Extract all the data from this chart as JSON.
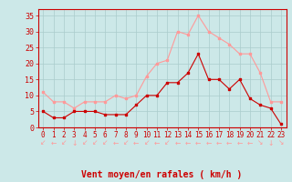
{
  "hours": [
    0,
    1,
    2,
    3,
    4,
    5,
    6,
    7,
    8,
    9,
    10,
    11,
    12,
    13,
    14,
    15,
    16,
    17,
    18,
    19,
    20,
    21,
    22,
    23
  ],
  "wind_avg": [
    5,
    3,
    3,
    5,
    5,
    5,
    4,
    4,
    4,
    7,
    10,
    10,
    14,
    14,
    17,
    23,
    15,
    15,
    12,
    15,
    9,
    7,
    6,
    1
  ],
  "wind_gust": [
    11,
    8,
    8,
    6,
    8,
    8,
    8,
    10,
    9,
    10,
    16,
    20,
    21,
    30,
    29,
    35,
    30,
    28,
    26,
    23,
    23,
    17,
    8,
    8
  ],
  "avg_color": "#cc0000",
  "gust_color": "#ff9999",
  "bg_color": "#cce8e8",
  "grid_color": "#aacccc",
  "axis_color": "#cc0000",
  "xlabel": "Vent moyen/en rafales ( km/h )",
  "ylim": [
    0,
    37
  ],
  "yticks": [
    0,
    5,
    10,
    15,
    20,
    25,
    30,
    35
  ],
  "arrow_chars": [
    "↙",
    "←",
    "↙",
    "↓",
    "↙",
    "↙",
    "↙",
    "←",
    "↙",
    "←",
    "↙",
    "←",
    "↙",
    "←",
    "←",
    "←",
    "←",
    "←",
    "←",
    "←",
    "←",
    "↘",
    "↓",
    "↘"
  ]
}
